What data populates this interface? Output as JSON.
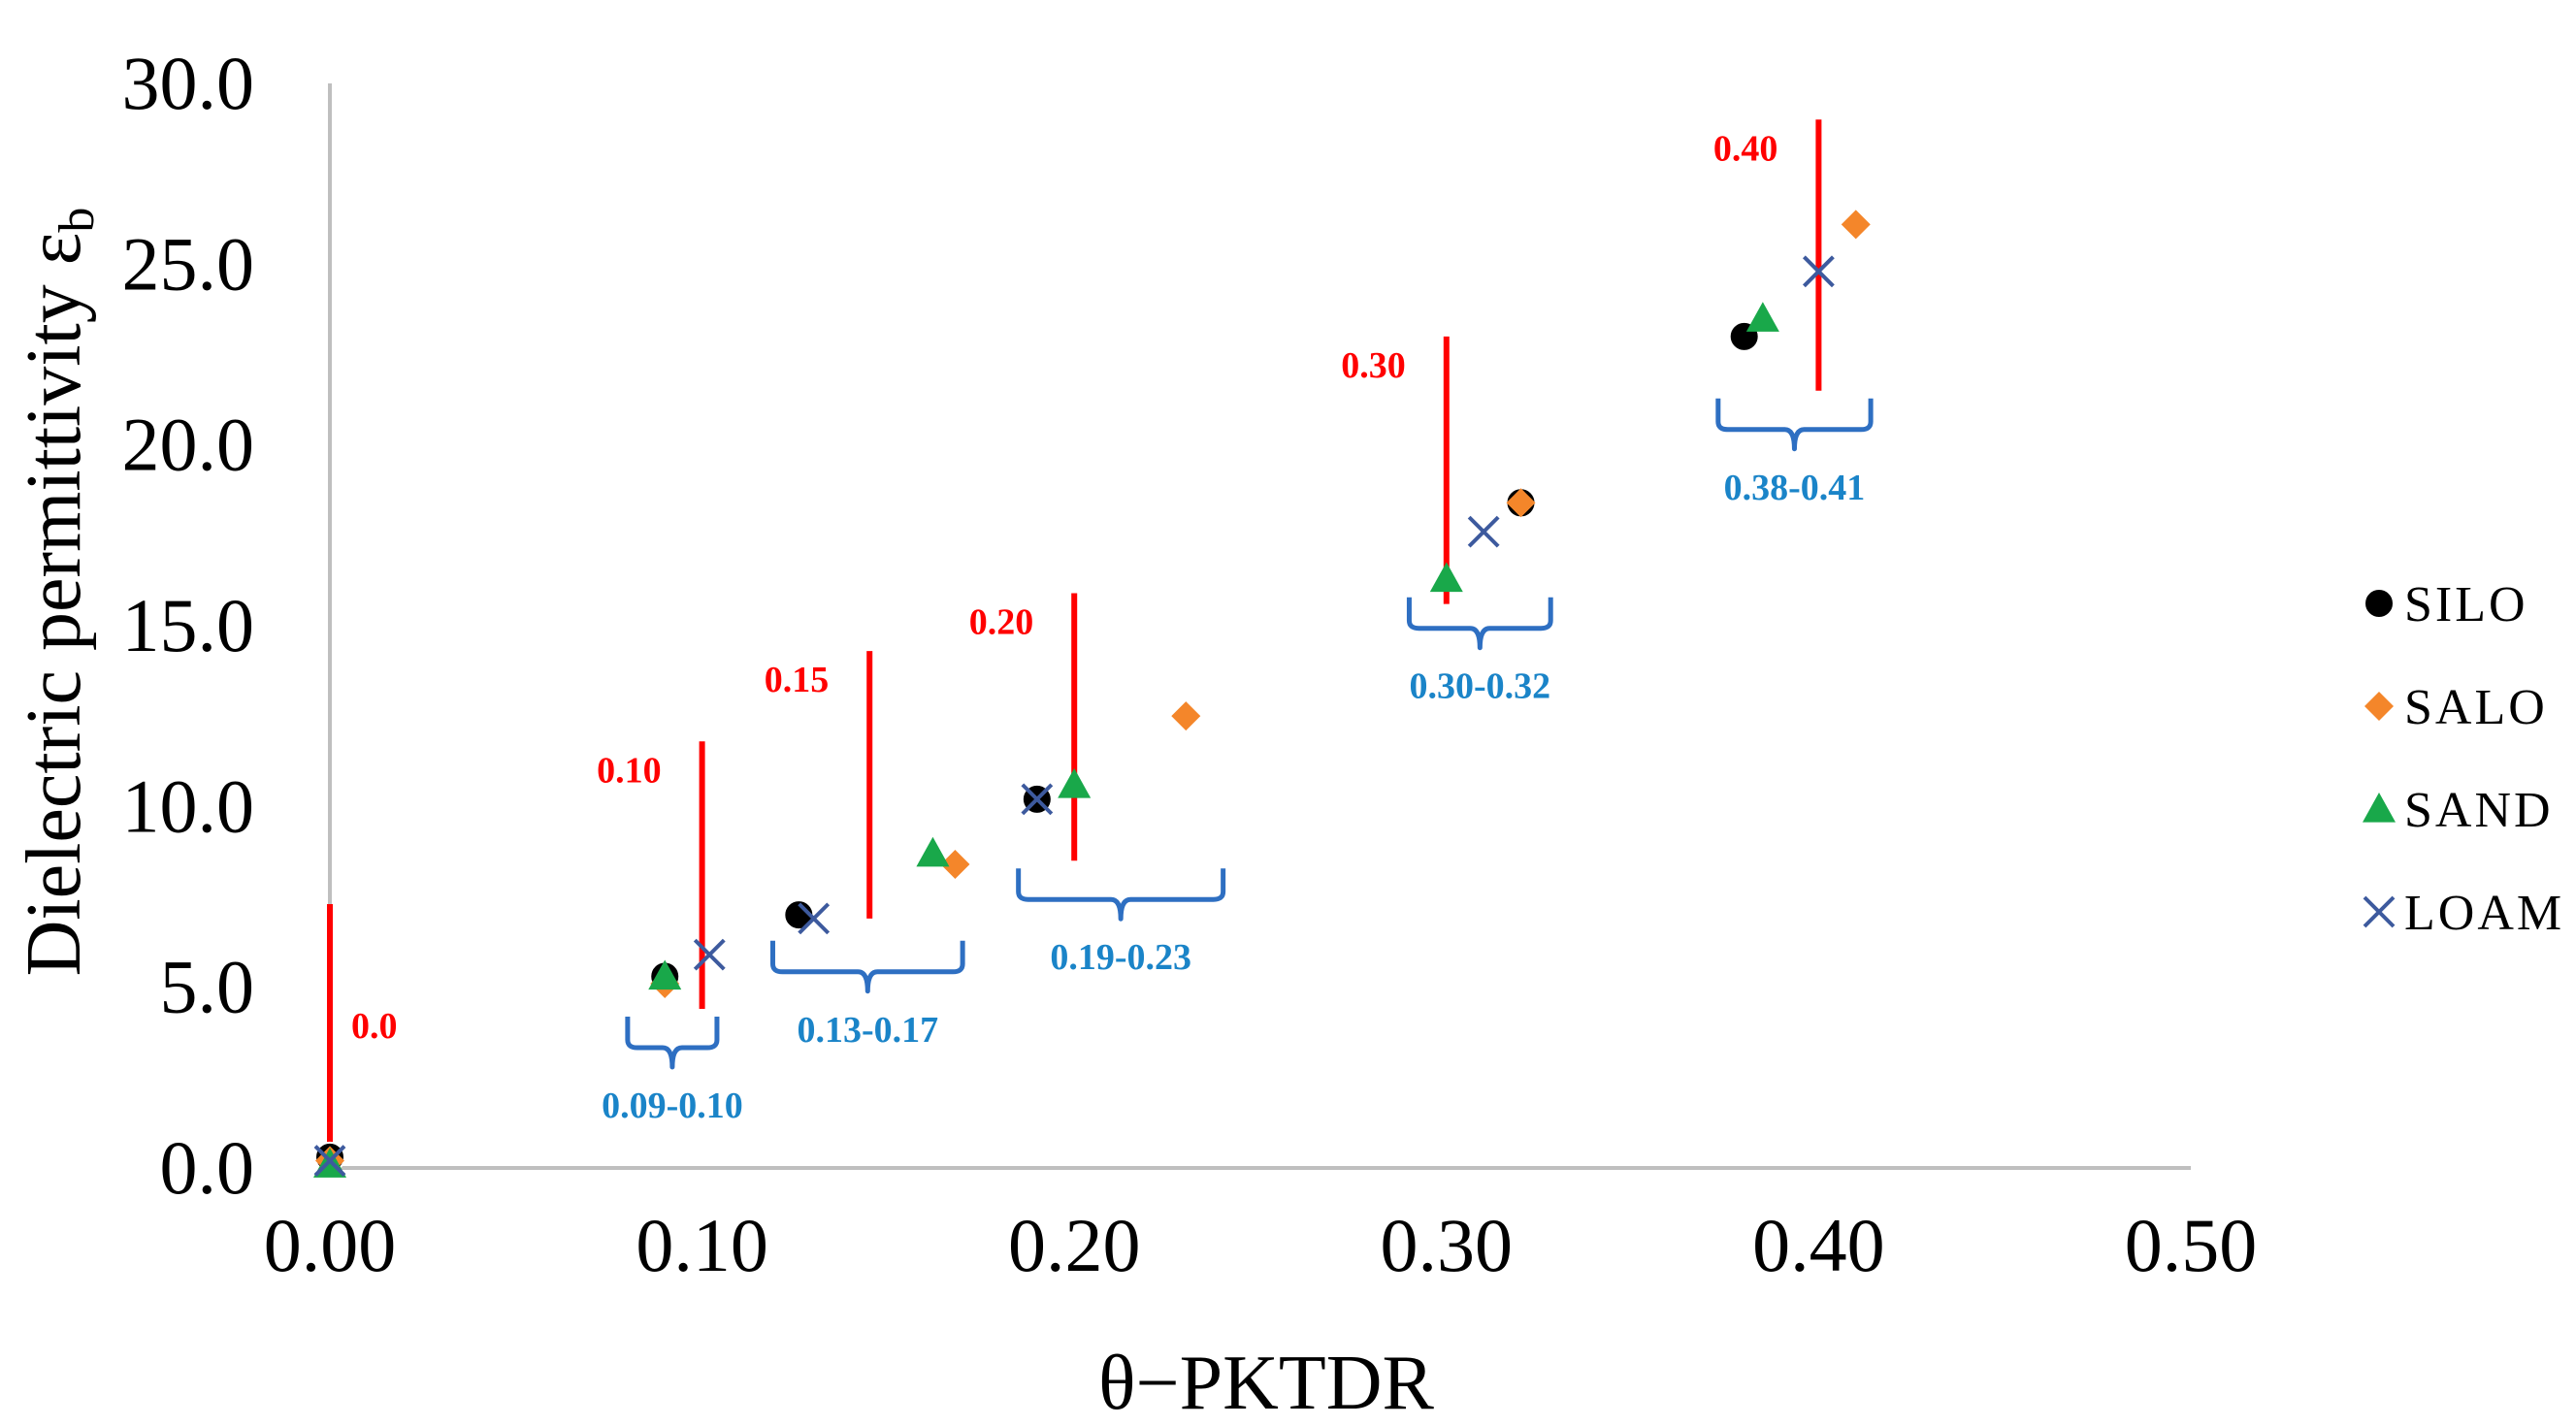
{
  "chart_data": {
    "type": "scatter",
    "xlabel": "θ−PKTDR",
    "ylabel_main": "Dielectric permittivity ε",
    "ylabel_sub": "b",
    "xlim": [
      0,
      0.5
    ],
    "ylim": [
      0,
      30
    ],
    "xticks": [
      0,
      0.1,
      0.2,
      0.3,
      0.4,
      0.5
    ],
    "xtick_labels": [
      "0.00",
      "0.10",
      "0.20",
      "0.30",
      "0.40",
      "0.50"
    ],
    "yticks": [
      0,
      5,
      10,
      15,
      20,
      25,
      30
    ],
    "ytick_labels": [
      "0.0",
      "5.0",
      "10.0",
      "15.0",
      "20.0",
      "25.0",
      "30.0"
    ],
    "grid": false,
    "legend_position": "right",
    "colors": {
      "silo": "#000000",
      "salo": "#f4862a",
      "sand": "#19a84a",
      "loam": "#3d5a9e",
      "ref_line": "#ff0000",
      "range_bracket": "#2e6fc2",
      "range_text": "#1a84c8",
      "axis": "#bfbfbf"
    },
    "series": [
      {
        "name": "SILO",
        "marker": "circle",
        "x": [
          0.0,
          0.09,
          0.126,
          0.19,
          0.32,
          0.38
        ],
        "y": [
          0.3,
          5.3,
          7.0,
          10.2,
          18.4,
          23.0
        ]
      },
      {
        "name": "SALO",
        "marker": "diamond",
        "x": [
          0.0,
          0.09,
          0.168,
          0.23,
          0.32,
          0.41
        ],
        "y": [
          0.2,
          5.1,
          8.4,
          12.5,
          18.4,
          26.1
        ]
      },
      {
        "name": "SAND",
        "marker": "triangle",
        "x": [
          0.0,
          0.09,
          0.162,
          0.2,
          0.3,
          0.385
        ],
        "y": [
          0.1,
          5.3,
          8.7,
          10.6,
          16.3,
          23.5
        ]
      },
      {
        "name": "LOAM",
        "marker": "x",
        "x": [
          0.0,
          0.102,
          0.13,
          0.19,
          0.31,
          0.4
        ],
        "y": [
          0.2,
          5.9,
          6.9,
          10.2,
          17.6,
          24.8
        ]
      }
    ],
    "reference_lines": [
      {
        "label": "0.0",
        "x": 0.0,
        "y_start": 0.2,
        "y_end": 7.3
      },
      {
        "label": "0.10",
        "x": 0.1,
        "y_start": 4.4,
        "y_end": 11.8
      },
      {
        "label": "0.15",
        "x": 0.145,
        "y_start": 6.9,
        "y_end": 14.3
      },
      {
        "label": "0.20",
        "x": 0.2,
        "y_start": 8.5,
        "y_end": 15.9
      },
      {
        "label": "0.30",
        "x": 0.3,
        "y_start": 15.6,
        "y_end": 23.0
      },
      {
        "label": "0.40",
        "x": 0.4,
        "y_start": 21.5,
        "y_end": 29.0
      }
    ],
    "range_annotations": [
      {
        "label": "0.09-0.10",
        "x_start": 0.08,
        "x_end": 0.104,
        "y": 4.4
      },
      {
        "label": "0.13-0.17",
        "x_start": 0.119,
        "x_end": 0.17,
        "y": 6.5
      },
      {
        "label": "0.19-0.23",
        "x_start": 0.185,
        "x_end": 0.24,
        "y": 8.5
      },
      {
        "label": "0.30-0.32",
        "x_start": 0.29,
        "x_end": 0.328,
        "y": 16.0
      },
      {
        "label": "0.38-0.41",
        "x_start": 0.373,
        "x_end": 0.414,
        "y": 21.5
      }
    ]
  }
}
